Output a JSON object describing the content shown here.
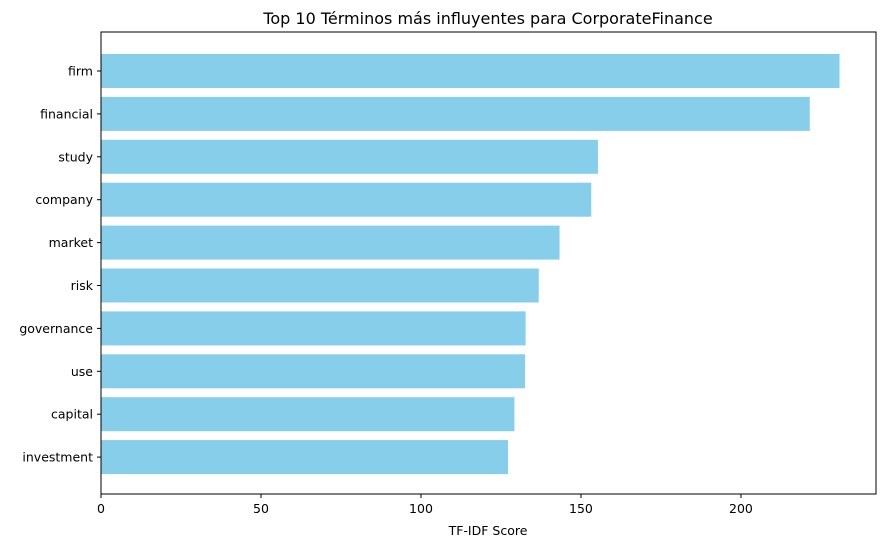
{
  "chart_data": {
    "type": "bar",
    "orientation": "horizontal",
    "title": "Top 10 Términos más influyentes para CorporateFinance",
    "xlabel": "TF-IDF Score",
    "ylabel": "",
    "categories": [
      "firm",
      "financial",
      "study",
      "company",
      "market",
      "risk",
      "governance",
      "use",
      "capital",
      "investment"
    ],
    "values": [
      230.8,
      221.5,
      155.3,
      153.2,
      143.3,
      136.8,
      132.7,
      132.5,
      129.2,
      127.2
    ],
    "xlim": [
      0,
      242.2
    ],
    "xticks": [
      0,
      50,
      100,
      150,
      200
    ],
    "bar_color": "#87ceeb",
    "grid": false,
    "legend": "none"
  }
}
